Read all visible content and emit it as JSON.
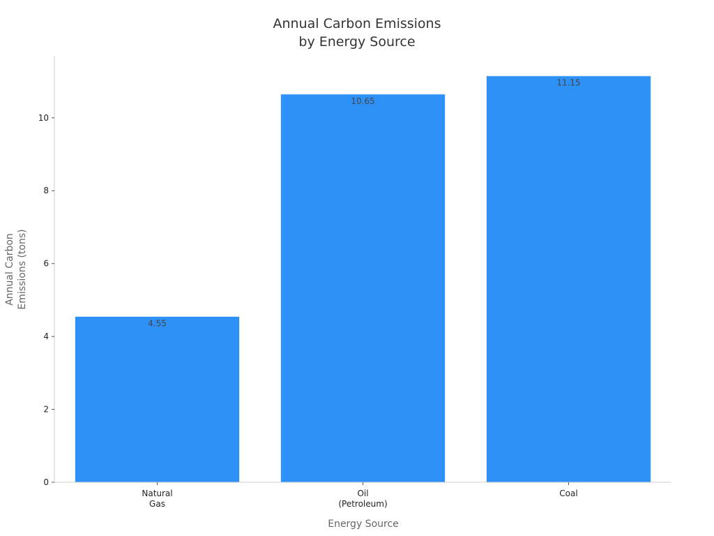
{
  "chart_data": {
    "type": "bar",
    "title": [
      "Annual Carbon Emissions",
      "by Energy Source"
    ],
    "xlabel": "Energy Source",
    "ylabel": [
      "Annual Carbon",
      "Emissions (tons)"
    ],
    "categories": [
      [
        "Natural",
        "Gas"
      ],
      [
        "Oil",
        "(Petroleum)"
      ],
      [
        "Coal"
      ]
    ],
    "values": [
      4.55,
      10.65,
      11.15
    ],
    "data_labels": [
      "4.55",
      "10.65",
      "11.15"
    ],
    "ylim": [
      0,
      11.7
    ],
    "yticks": [
      0,
      2,
      4,
      6,
      8,
      10
    ],
    "grid": false,
    "bar_color": "#2e91f8",
    "bar_edge_color": "#e3effb"
  }
}
